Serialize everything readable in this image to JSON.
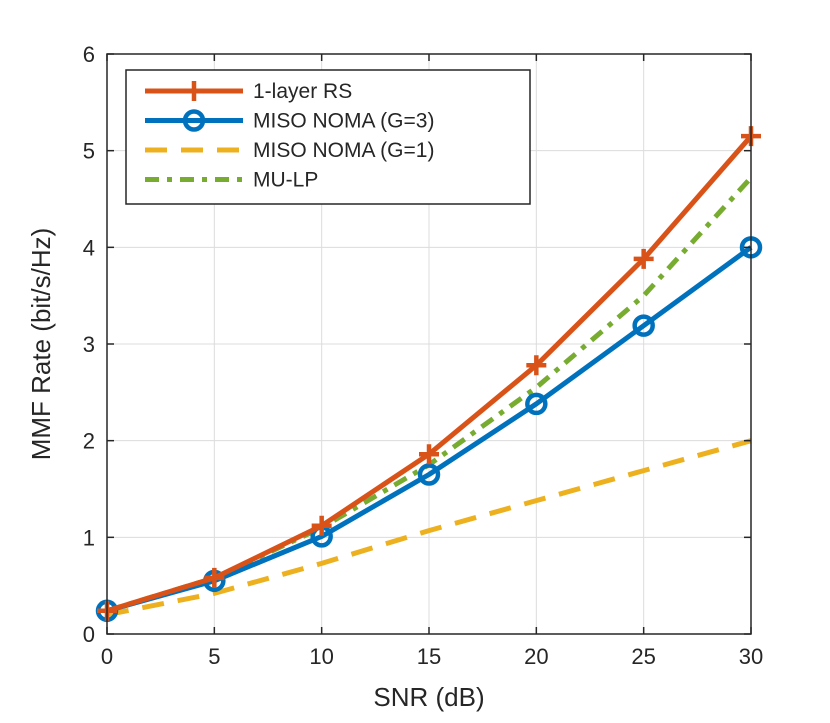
{
  "chart_data": {
    "type": "line",
    "title": "",
    "xlabel": "SNR (dB)",
    "ylabel": "MMF Rate (bit/s/Hz)",
    "xlim": [
      0,
      30
    ],
    "ylim": [
      0,
      6
    ],
    "xticks": [
      "0",
      "5",
      "10",
      "15",
      "20",
      "25",
      "30"
    ],
    "yticks": [
      "0",
      "1",
      "2",
      "3",
      "4",
      "5",
      "6"
    ],
    "grid": true,
    "legend_position": "top-left",
    "x": [
      0,
      5,
      10,
      15,
      20,
      25,
      30
    ],
    "series": [
      {
        "name": "1-layer RS",
        "values": [
          0.24,
          0.58,
          1.12,
          1.86,
          2.78,
          3.88,
          5.15
        ],
        "color": "#D95319",
        "style": "solid",
        "marker": "plus"
      },
      {
        "name": "MISO NOMA (G=3)",
        "values": [
          0.24,
          0.55,
          1.01,
          1.65,
          2.38,
          3.19,
          4.0
        ],
        "color": "#0072BD",
        "style": "solid",
        "marker": "circle"
      },
      {
        "name": "MISO NOMA (G=1)",
        "values": [
          0.2,
          0.42,
          0.73,
          1.07,
          1.38,
          1.69,
          2.0
        ],
        "color": "#EDB120",
        "style": "dashed",
        "marker": "none"
      },
      {
        "name": "MU-LP",
        "values": [
          0.24,
          0.58,
          1.1,
          1.75,
          2.55,
          3.5,
          4.72
        ],
        "color": "#77AC30",
        "style": "dashdot",
        "marker": "none"
      }
    ]
  }
}
